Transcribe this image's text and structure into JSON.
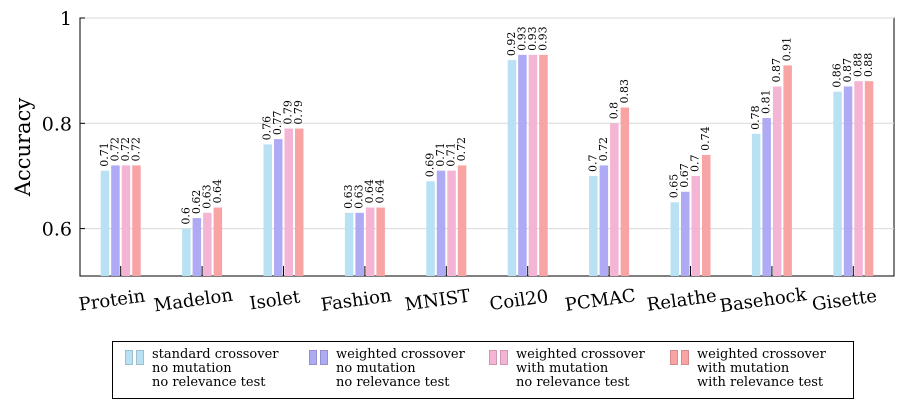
{
  "chart_data": {
    "type": "bar",
    "ylabel": "Accuracy",
    "xlabel": "",
    "ylim": [
      0.51,
      1.0
    ],
    "yticks": [
      0.6,
      0.8,
      1
    ],
    "ytick_labels": [
      "0.6",
      "0.8",
      "1"
    ],
    "grid": true,
    "categories": [
      "Protein",
      "Madelon",
      "Isolet",
      "Fashion",
      "MNIST",
      "Coil20",
      "PCMAC",
      "Relathe",
      "Basehock",
      "Gisette"
    ],
    "series": [
      {
        "name": "standard crossover\nno mutation\nno relevance test",
        "color": "#b8e2f4",
        "values": [
          0.71,
          0.6,
          0.76,
          0.63,
          0.69,
          0.92,
          0.7,
          0.65,
          0.78,
          0.86
        ],
        "labels": [
          "0.71",
          "0.6",
          "0.76",
          "0.63",
          "0.69",
          "0.92",
          "0.7",
          "0.65",
          "0.78",
          "0.86"
        ]
      },
      {
        "name": "weighted crossover\nno mutation\nno relevance test",
        "color": "#aeaaf4",
        "values": [
          0.72,
          0.62,
          0.77,
          0.63,
          0.71,
          0.93,
          0.72,
          0.67,
          0.81,
          0.87
        ],
        "labels": [
          "0.72",
          "0.62",
          "0.77",
          "0.63",
          "0.71",
          "0.93",
          "0.72",
          "0.67",
          "0.81",
          "0.87"
        ]
      },
      {
        "name": "weighted crossover\nwith mutation\nno relevance test",
        "color": "#f4b4d4",
        "values": [
          0.72,
          0.63,
          0.79,
          0.64,
          0.71,
          0.93,
          0.8,
          0.7,
          0.87,
          0.88
        ],
        "labels": [
          "0.72",
          "0.63",
          "0.79",
          "0.64",
          "0.71",
          "0.93",
          "0.8",
          "0.7",
          "0.87",
          "0.88"
        ]
      },
      {
        "name": "weighted crossover\nwith mutation\nwith relevance test",
        "color": "#f8a4a4",
        "values": [
          0.72,
          0.64,
          0.79,
          0.64,
          0.72,
          0.93,
          0.83,
          0.74,
          0.91,
          0.88
        ],
        "labels": [
          "0.72",
          "0.64",
          "0.79",
          "0.64",
          "0.72",
          "0.93",
          "0.83",
          "0.74",
          "0.91",
          "0.88"
        ]
      }
    ]
  }
}
